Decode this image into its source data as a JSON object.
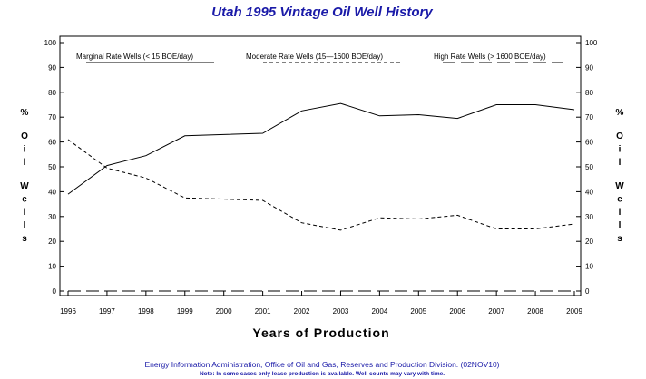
{
  "chart_data": {
    "type": "line",
    "title": "Utah 1995 Vintage Oil Well History",
    "xlabel": "Years of Production",
    "ylabel": "% Oil Wells",
    "ylim": [
      0,
      100
    ],
    "yticks": [
      0,
      10,
      20,
      30,
      40,
      50,
      60,
      70,
      80,
      90,
      100
    ],
    "x": [
      "1996",
      "1997",
      "1998",
      "1999",
      "2000",
      "2001",
      "2002",
      "2003",
      "2004",
      "2005",
      "2006",
      "2007",
      "2008",
      "2009"
    ],
    "series": [
      {
        "name": "Marginal Rate Wells (< 15 BOE/day)",
        "style": "solid",
        "values": [
          39,
          50.5,
          54.5,
          62.5,
          63,
          63.5,
          72.5,
          75.5,
          70.5,
          71,
          69.5,
          75,
          75,
          73
        ]
      },
      {
        "name": "Moderate Rate Wells (15—1600 BOE/day)",
        "style": "short-dash",
        "values": [
          61,
          49.5,
          45.5,
          37.5,
          37,
          36.5,
          27.5,
          24.5,
          29.5,
          29,
          30.5,
          25,
          25,
          27
        ]
      },
      {
        "name": "High Rate Wells (> 1600 BOE/day)",
        "style": "long-dash",
        "values": [
          0,
          0,
          0,
          0,
          0,
          0,
          0,
          0,
          0,
          0,
          0,
          0,
          0,
          0
        ]
      }
    ],
    "legend_position": "top",
    "grid": false,
    "colors": {
      "line": "#000000",
      "title": "#1a1aa8",
      "footnote": "#1a1aa8"
    }
  },
  "footnote": {
    "line1": "Energy Information Administration, Office of Oil and Gas, Reserves and Production Division. (02NOV10)",
    "line2": "Note: In some cases only lease production is available. Well counts may vary with time."
  }
}
